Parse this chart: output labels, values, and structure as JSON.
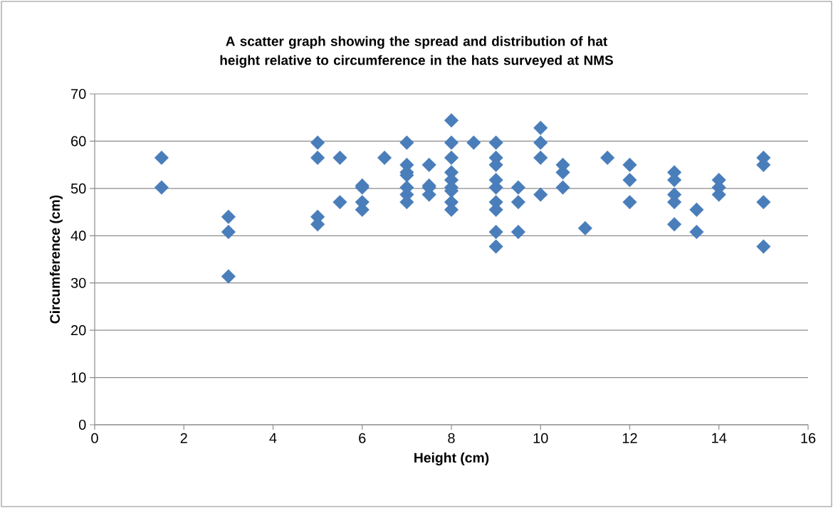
{
  "chart_data": {
    "type": "scatter",
    "title": "A scatter graph showing the spread and distribution of hat height relative to circumference in the hats surveyed at NMS",
    "xlabel": "Height (cm)",
    "ylabel": "Circumference (cm)",
    "xlim": [
      0,
      16
    ],
    "xticks": [
      0,
      2,
      4,
      6,
      8,
      10,
      12,
      14,
      16
    ],
    "ylim": [
      0,
      70
    ],
    "yticks": [
      0,
      10,
      20,
      30,
      40,
      50,
      60,
      70
    ],
    "grid": "y",
    "legend": false,
    "marker": "diamond",
    "series": [
      {
        "color": "#4a7ebb",
        "x": [
          1.5,
          1.5,
          3,
          3,
          3,
          5,
          5,
          5,
          5,
          5.5,
          5.5,
          6,
          6,
          6,
          6,
          6.5,
          7,
          7,
          7,
          7,
          7,
          7,
          7,
          7.5,
          7.5,
          7.5,
          7.5,
          8,
          8,
          8,
          8,
          8,
          8,
          8,
          8,
          8,
          8.5,
          9,
          9,
          9,
          9,
          9,
          9,
          9,
          9,
          9,
          9.5,
          9.5,
          9.5,
          10,
          10,
          10,
          10,
          10.5,
          10.5,
          10.5,
          11,
          11.5,
          12,
          12,
          12,
          13,
          13,
          13,
          13,
          13,
          13.5,
          13.5,
          14,
          14,
          14,
          15,
          15,
          15,
          15
        ],
        "values": [
          56.5,
          50.2,
          44,
          40.8,
          31.4,
          59.7,
          56.5,
          44,
          42.4,
          56.5,
          47.1,
          50.6,
          50.2,
          47.1,
          45.5,
          56.5,
          59.7,
          55,
          53.4,
          52.8,
          50.2,
          48.7,
          47.1,
          55,
          50.6,
          50.2,
          48.7,
          64.4,
          59.7,
          56.5,
          53.4,
          51.8,
          50.2,
          49.5,
          47.1,
          45.5,
          59.7,
          59.7,
          56.5,
          55,
          51.8,
          50.2,
          47.1,
          45.5,
          40.8,
          37.7,
          50.2,
          47.1,
          40.8,
          62.8,
          59.7,
          56.5,
          48.7,
          55,
          53.4,
          50.2,
          41.6,
          56.5,
          55,
          51.8,
          47.1,
          53.4,
          51.8,
          48.7,
          47.1,
          42.4,
          45.5,
          40.8,
          51.8,
          50.2,
          48.7,
          56.5,
          55,
          47.1,
          37.7
        ]
      }
    ]
  }
}
